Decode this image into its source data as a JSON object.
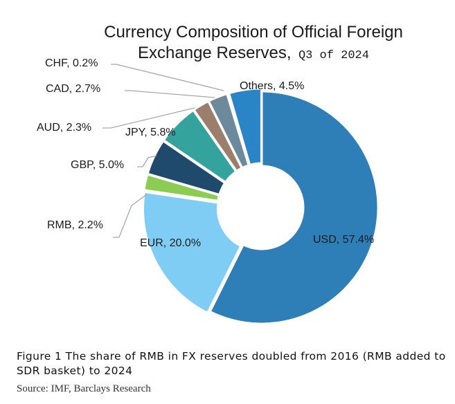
{
  "chart_data": {
    "type": "pie",
    "title_line1": "Currency Composition of Official Foreign",
    "title_line2": "Exchange Reserves,",
    "title_period": "Q3 of 2024",
    "slices": [
      {
        "name": "USD",
        "value": 57.4,
        "label": "USD, 57.4%",
        "color": "#2e7eb8"
      },
      {
        "name": "EUR",
        "value": 20.0,
        "label": "EUR, 20.0%",
        "color": "#7fcdf4"
      },
      {
        "name": "RMB",
        "value": 2.2,
        "label": "RMB, 2.2%",
        "color": "#8ccc52"
      },
      {
        "name": "GBP",
        "value": 5.0,
        "label": "GBP, 5.0%",
        "color": "#204a6c"
      },
      {
        "name": "JPY",
        "value": 5.8,
        "label": "JPY, 5.8%",
        "color": "#34a39e"
      },
      {
        "name": "AUD",
        "value": 2.3,
        "label": "AUD, 2.3%",
        "color": "#9c7e6c"
      },
      {
        "name": "CAD",
        "value": 2.7,
        "label": "CAD, 2.7%",
        "color": "#6d899c"
      },
      {
        "name": "CHF",
        "value": 0.2,
        "label": "CHF, 0.2%",
        "color": "#9a9a9a"
      },
      {
        "name": "Others",
        "value": 4.5,
        "label": "Others, 4.5%",
        "color": "#2a85c6"
      }
    ]
  },
  "caption": "Figure 1 The share of RMB in FX reserves doubled from 2016 (RMB added to SDR basket) to 2024",
  "source": "Source: IMF, Barclays Research"
}
